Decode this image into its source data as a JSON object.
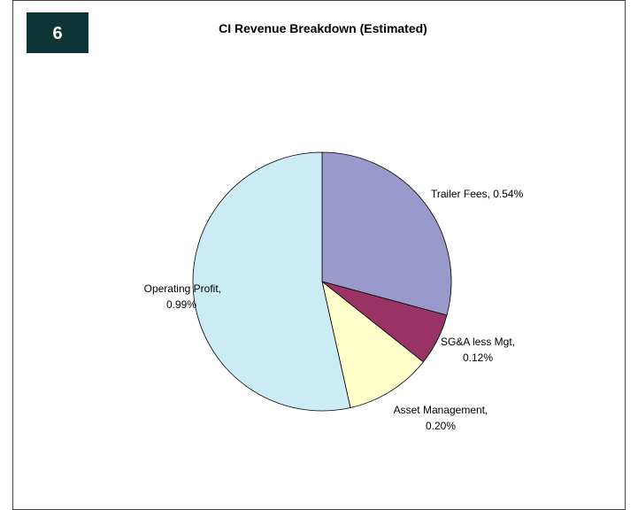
{
  "badge": "6",
  "chart_data": {
    "type": "pie",
    "title": "CI Revenue Breakdown (Estimated)",
    "values": [
      0.54,
      0.12,
      0.2,
      0.99
    ],
    "value_labels": [
      "Trailer Fees, 0.54%",
      "SG&A less Mgt, 0.12%",
      "Asset Management, 0.20%",
      "Operating Profit, 0.99%"
    ],
    "colors": [
      "#9999cc",
      "#993366",
      "#ffffcc",
      "#ccecf5"
    ]
  }
}
